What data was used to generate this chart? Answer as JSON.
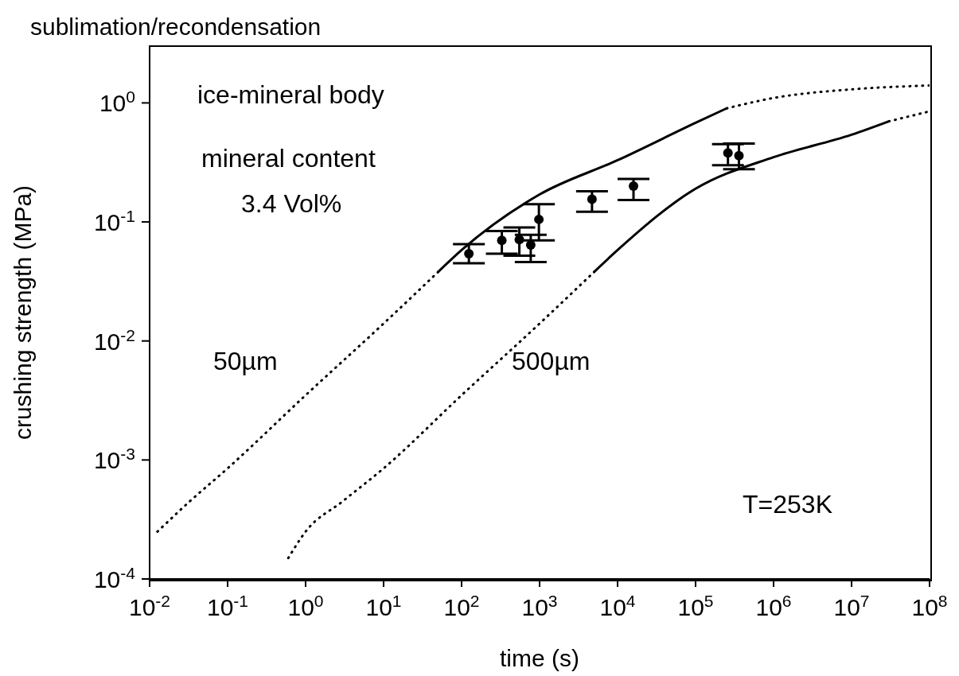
{
  "chart_data": {
    "type": "line",
    "title": "sublimation/recondensation",
    "xlabel": "time (s)",
    "ylabel": "crushing strength (MPa)",
    "log": "xy",
    "xlim": [
      0.01,
      100000000
    ],
    "xticks": [
      {
        "value": 0.01,
        "label": "10$^{-2}$"
      },
      {
        "value": 0.1,
        "label": "10$^{-1}$"
      },
      {
        "value": 1,
        "label": "10$^{0}$"
      },
      {
        "value": 10,
        "label": "10$^{1}$"
      },
      {
        "value": 100,
        "label": "10$^{2}$"
      },
      {
        "value": 1000,
        "label": "10$^{3}$"
      },
      {
        "value": 10000,
        "label": "10$^{4}$"
      },
      {
        "value": 100000,
        "label": "10$^{5}$"
      },
      {
        "value": 1000000,
        "label": "10$^{6}$"
      },
      {
        "value": 10000000,
        "label": "10$^{7}$"
      },
      {
        "value": 100000000,
        "label": "10$^{8}$"
      }
    ],
    "ylim": [
      0.0001,
      3
    ],
    "yticks": [
      {
        "value": 0.0001,
        "label": "10$^{-4}$"
      },
      {
        "value": 0.001,
        "label": "10$^{-3}$"
      },
      {
        "value": 0.01,
        "label": "10$^{-2}$"
      },
      {
        "value": 0.1,
        "label": "10$^{-1}$"
      },
      {
        "value": 1,
        "label": "10$^{0}$"
      }
    ],
    "series": [
      {
        "line_style": "dotted",
        "color": "#000000",
        "x": [
          0.0126,
          0.0316,
          0.1,
          1,
          10,
          50
        ],
        "values": [
          0.00025,
          0.00044,
          0.00085,
          0.0035,
          0.014,
          0.038
        ]
      },
      {
        "line_style": "solid",
        "color": "#000000",
        "x": [
          50,
          100,
          1000,
          10000,
          100000,
          250000
        ],
        "values": [
          0.038,
          0.058,
          0.17,
          0.33,
          0.68,
          0.9
        ]
      },
      {
        "line_style": "dotted",
        "color": "#000000",
        "x": [
          250000,
          1000000,
          10000000,
          100000000
        ],
        "values": [
          0.9,
          1.1,
          1.3,
          1.4
        ]
      },
      {
        "line_style": "dotted",
        "color": "#000000",
        "x": [
          0.6,
          1,
          3,
          10,
          100,
          1000,
          5000
        ],
        "values": [
          0.00015,
          0.00025,
          0.00045,
          0.00085,
          0.0035,
          0.014,
          0.038
        ]
      },
      {
        "line_style": "solid",
        "color": "#000000",
        "x": [
          5000,
          10000,
          100000,
          1000000,
          10000000,
          30000000
        ],
        "values": [
          0.038,
          0.058,
          0.19,
          0.35,
          0.54,
          0.7
        ]
      },
      {
        "line_style": "dotted",
        "color": "#000000",
        "x": [
          30000000,
          100000000
        ],
        "values": [
          0.7,
          0.85
        ]
      },
      {
        "type": "scatter",
        "marker": "circle",
        "color": "#000000",
        "x": [
          124,
          328,
          550,
          770,
          980,
          4700,
          16000,
          260000,
          360000
        ],
        "values": [
          0.054,
          0.07,
          0.071,
          0.064,
          0.105,
          0.155,
          0.2,
          0.38,
          0.36
        ],
        "errors": [
          [
            0.045,
            0.065
          ],
          [
            0.054,
            0.084
          ],
          [
            0.052,
            0.09
          ],
          [
            0.046,
            0.078
          ],
          [
            0.07,
            0.141
          ],
          [
            0.122,
            0.181
          ],
          [
            0.153,
            0.23
          ],
          [
            0.3,
            0.45
          ],
          [
            0.277,
            0.455
          ]
        ]
      }
    ],
    "annotations": [
      "ice-mineral body",
      "mineral content",
      "3.4 Vol%",
      "T=253K",
      "50µm",
      "500µm"
    ]
  }
}
